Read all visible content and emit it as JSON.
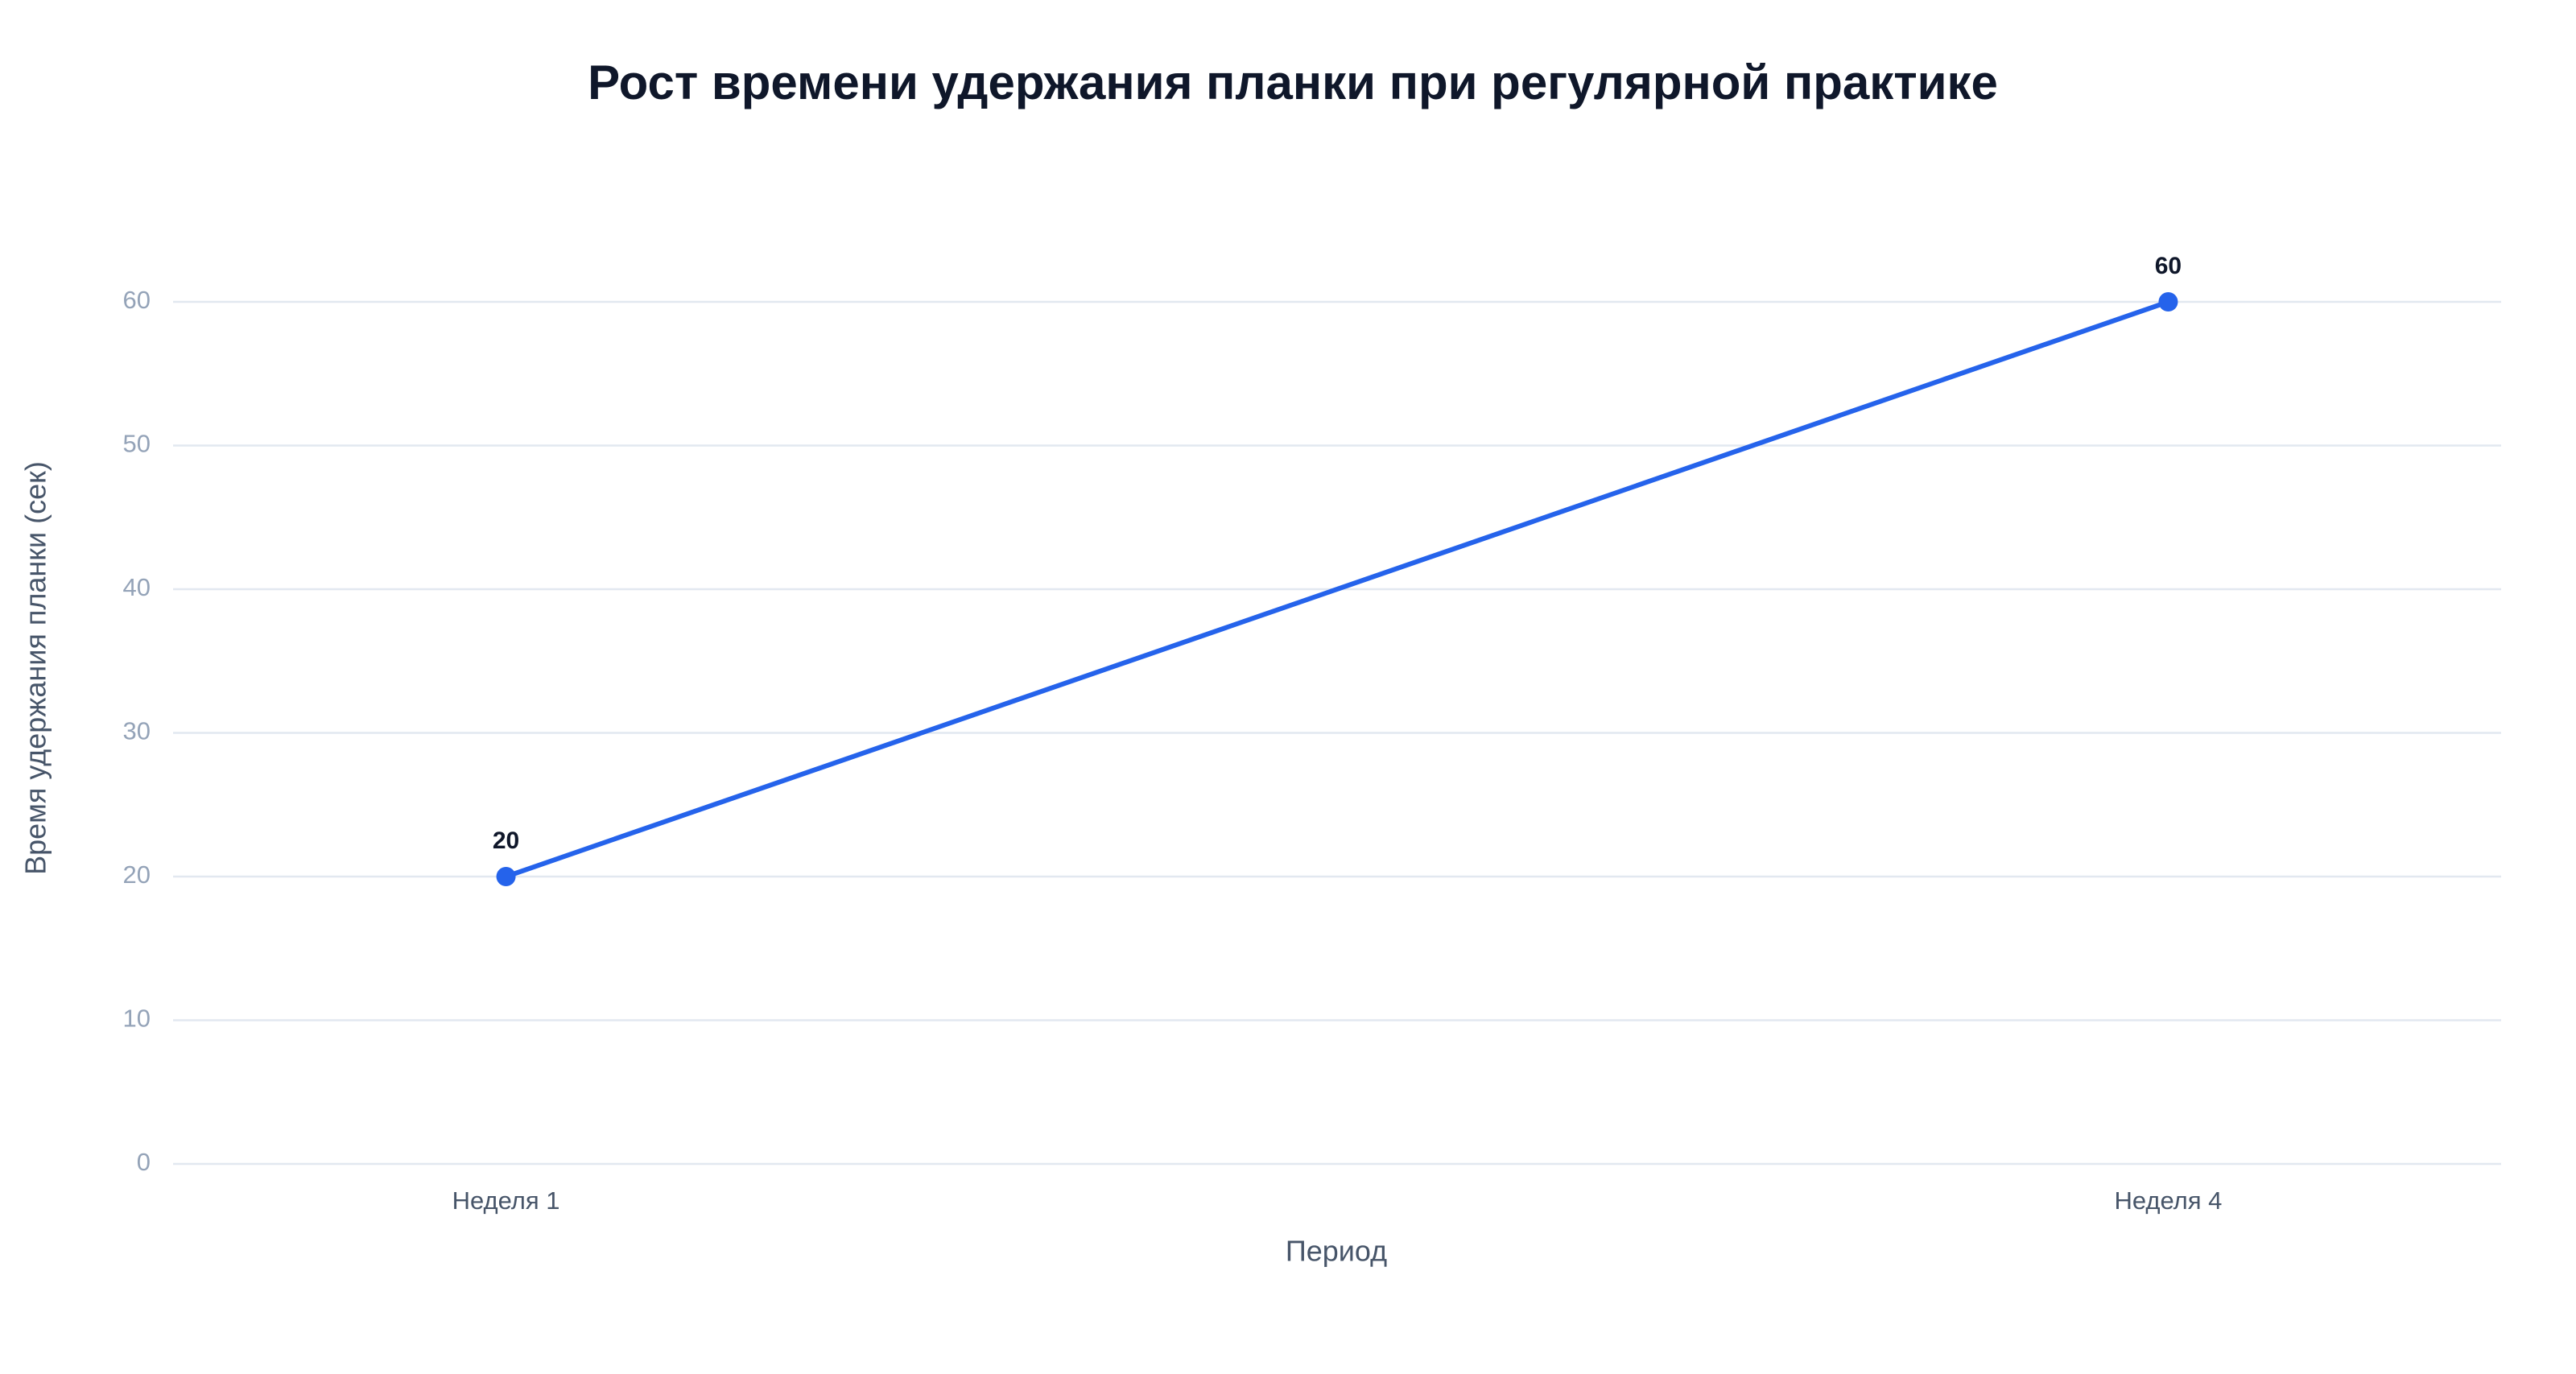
{
  "chart_data": {
    "type": "line",
    "title": "Рост времени удержания планки при регулярной практике",
    "x_label": "Период",
    "y_label": "Время удержания планки (сек)",
    "categories": [
      "Неделя 1",
      "Неделя 4"
    ],
    "values": [
      20,
      60
    ],
    "color": "#2563eb",
    "ylim": [
      0,
      60
    ],
    "yticks": [
      0,
      10,
      20,
      30,
      40,
      50,
      60
    ],
    "grid": true
  }
}
